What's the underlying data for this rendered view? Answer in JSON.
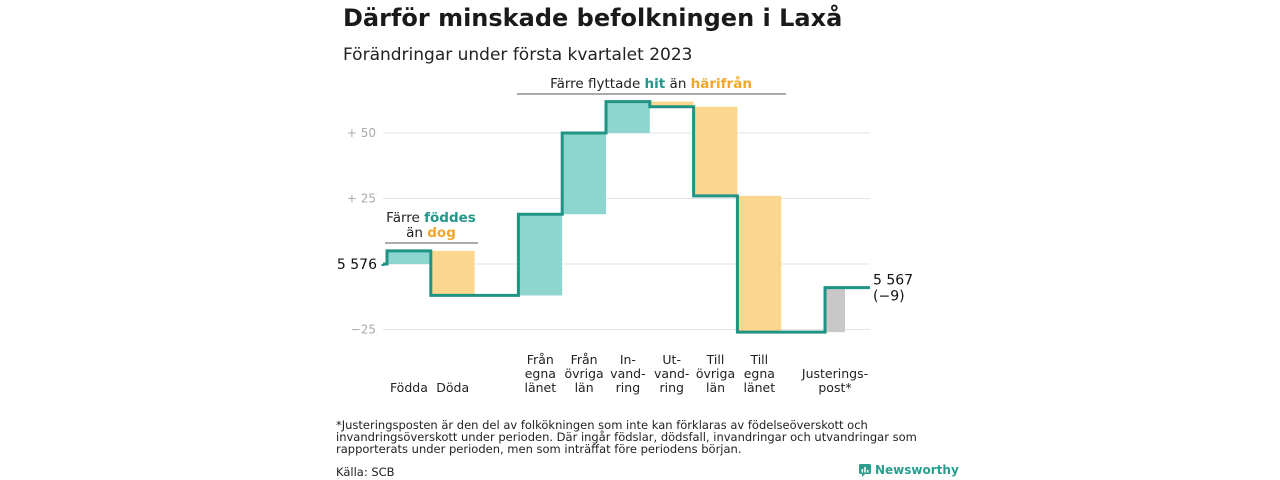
{
  "title": "Därför minskade befolkningen i Laxå",
  "subtitle": "Förändringar under första kvartalet 2023",
  "chart_data": {
    "type": "waterfall",
    "start_value": 5576,
    "start_label": "5 576",
    "end_value": 5567,
    "end_label": "5 567",
    "end_change_label": "(−9)",
    "y_ticks": [
      {
        "value": 50,
        "label": "+ 50"
      },
      {
        "value": 25,
        "label": "+ 25"
      },
      {
        "value": -25,
        "label": "−25"
      }
    ],
    "ylim": [
      -27,
      63
    ],
    "steps": [
      {
        "key": "fodda",
        "label_lines": [
          "Födda"
        ],
        "value": 5,
        "kind": "in"
      },
      {
        "key": "doda",
        "label_lines": [
          "Döda"
        ],
        "value": -17,
        "kind": "out"
      },
      {
        "key": "fran_egna",
        "label_lines": [
          "Från",
          "egna",
          "länet"
        ],
        "value": 31,
        "kind": "in"
      },
      {
        "key": "fran_ovriga",
        "label_lines": [
          "Från",
          "övriga",
          "län"
        ],
        "value": 31,
        "kind": "in"
      },
      {
        "key": "invandring",
        "label_lines": [
          "In-",
          "vand-",
          "ring"
        ],
        "value": 12,
        "kind": "in"
      },
      {
        "key": "utvandring",
        "label_lines": [
          "Ut-",
          "vand-",
          "ring"
        ],
        "value": -2,
        "kind": "out"
      },
      {
        "key": "till_ovriga",
        "label_lines": [
          "Till",
          "övriga",
          "län"
        ],
        "value": -34,
        "kind": "out"
      },
      {
        "key": "till_egna",
        "label_lines": [
          "Till",
          "egna",
          "länet"
        ],
        "value": -52,
        "kind": "out"
      },
      {
        "key": "justering",
        "label_lines": [
          "Justerings-",
          "post*"
        ],
        "value": 17,
        "kind": "adjust"
      }
    ],
    "annotations": {
      "births": {
        "line1": "Färre ",
        "line1_hl": "föddes",
        "line2": "än ",
        "line2_hl": "dog"
      },
      "migration": {
        "text1": "Färre flyttade ",
        "hl_in": "hit",
        "text2": " än ",
        "hl_out": "härifrån"
      }
    },
    "colors": {
      "in": "#8dd5ce",
      "out": "#fad68e",
      "adjust": "#c8c8c8",
      "line": "#1f9484",
      "grid": "#e3e3e3",
      "highlight_in": "#23968a",
      "highlight_out": "#f2a72c"
    }
  },
  "footnote": "*Justeringsposten är den del av folkökningen som inte kan förklaras av födelseöverskott och invandringsöverskott under perioden. Där ingår födslar, dödsfall, invandringar och utvandringar som rapporterats under perioden, men som inträffat före periodens början.",
  "source": "Källa: SCB",
  "brand": {
    "name": "Newsworthy",
    "icon": "bar-chart-logo-icon"
  }
}
